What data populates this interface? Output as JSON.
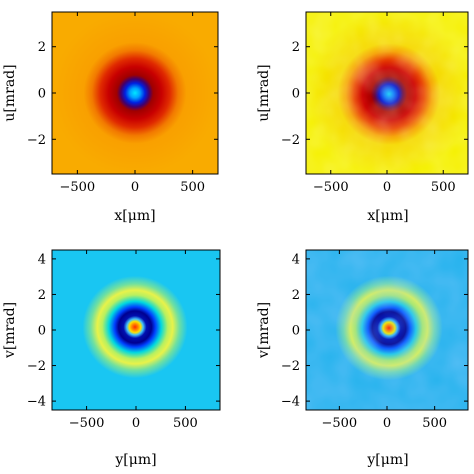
{
  "chart_data": [
    {
      "type": "heatmap",
      "panel": "top-left",
      "xlabel": "x[μm]",
      "ylabel": "u[mrad]",
      "xlim": [
        -720,
        720
      ],
      "ylim": [
        -3.5,
        3.5
      ],
      "xticks": [
        -500,
        0,
        500
      ],
      "xtick_labels": [
        "−500",
        "0",
        "500"
      ],
      "yticks": [
        -2,
        0,
        2
      ],
      "ytick_labels": [
        "−2",
        "0",
        "2"
      ],
      "colormap": "jet",
      "background_color": "#f9ab00",
      "ring_color": "#c00000",
      "core_color": "#0030ff",
      "noisy": false
    },
    {
      "type": "heatmap",
      "panel": "top-right",
      "xlabel": "x[μm]",
      "ylabel": "u[mrad]",
      "xlim": [
        -720,
        720
      ],
      "ylim": [
        -3.5,
        3.5
      ],
      "xticks": [
        -500,
        0,
        500
      ],
      "xtick_labels": [
        "−500",
        "0",
        "500"
      ],
      "yticks": [
        -2,
        0,
        2
      ],
      "ytick_labels": [
        "−2",
        "0",
        "2"
      ],
      "colormap": "jet",
      "background_color": "#f5f000",
      "ring_color": "#c00000",
      "core_color": "#0030ff",
      "noisy": true
    },
    {
      "type": "heatmap",
      "panel": "bottom-left",
      "xlabel": "y[μm]",
      "ylabel": "v[mrad]",
      "xlim": [
        -850,
        850
      ],
      "ylim": [
        -4.5,
        4.5
      ],
      "xticks": [
        -500,
        0,
        500
      ],
      "xtick_labels": [
        "−500",
        "0",
        "500"
      ],
      "yticks": [
        -4,
        -2,
        0,
        2,
        4
      ],
      "ytick_labels": [
        "−4",
        "−2",
        "0",
        "2",
        "4"
      ],
      "colormap": "jet",
      "background_color": "#19c6f2",
      "ring_color": "#e8f24a",
      "core_color": "#ff2a00",
      "noisy": false
    },
    {
      "type": "heatmap",
      "panel": "bottom-right",
      "xlabel": "y[μm]",
      "ylabel": "v[mrad]",
      "xlim": [
        -850,
        850
      ],
      "ylim": [
        -4.5,
        4.5
      ],
      "xticks": [
        -500,
        0,
        500
      ],
      "xtick_labels": [
        "−500",
        "0",
        "500"
      ],
      "yticks": [
        -4,
        -2,
        0,
        2,
        4
      ],
      "ytick_labels": [
        "−4",
        "−2",
        "0",
        "2",
        "4"
      ],
      "colormap": "jet",
      "background_color": "#2ab4ee",
      "ring_color": "#d8f05a",
      "core_color": "#ff2a00",
      "noisy": true
    }
  ]
}
